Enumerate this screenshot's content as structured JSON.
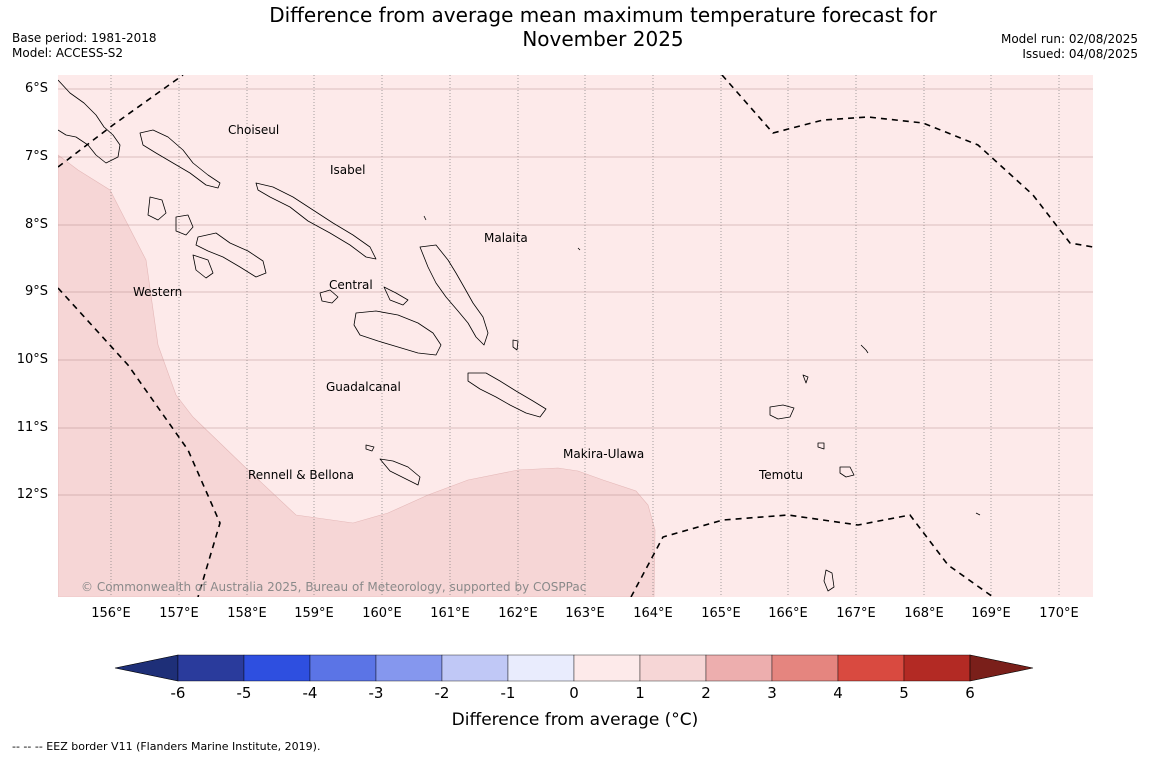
{
  "title": "Difference from average mean maximum temperature forecast for\nNovember 2025",
  "base_period": "Base period: 1981-2018",
  "model": "Model: ACCESS-S2",
  "model_run": "Model run: 02/08/2025",
  "issued": "Issued: 04/08/2025",
  "latitude_labels": [
    "6°S",
    "7°S",
    "8°S",
    "9°S",
    "10°S",
    "11°S",
    "12°S"
  ],
  "longitude_labels": [
    "156°E",
    "157°E",
    "158°E",
    "159°E",
    "160°E",
    "161°E",
    "162°E",
    "163°E",
    "164°E",
    "165°E",
    "166°E",
    "167°E",
    "168°E",
    "169°E",
    "170°E"
  ],
  "region_labels": {
    "choiseul": "Choiseul",
    "isabel": "Isabel",
    "malaita": "Malaita",
    "western": "Western",
    "central": "Central",
    "guadalcanal": "Guadalcanal",
    "makira_ulawa": "Makira-Ulawa",
    "rennell_bellona": "Rennell & Bellona",
    "temotu": "Temotu"
  },
  "copyright": "© Commonwealth of Australia 2025, Bureau of Meteorology, supported by COSPPac",
  "colorbar": {
    "ticks": [
      "-6",
      "-5",
      "-4",
      "-3",
      "-2",
      "-1",
      "0",
      "1",
      "2",
      "3",
      "4",
      "5",
      "6"
    ],
    "colors": [
      "#2a3b9c",
      "#2e4fe0",
      "#5b74e6",
      "#8597ee",
      "#c0c8f6",
      "#e9ecfd",
      "#fdeaea",
      "#f6d6d6",
      "#edaeae",
      "#e5857f",
      "#d94a40",
      "#b32a24"
    ],
    "under_color": "#1e2f78",
    "over_color": "#7a1f1a",
    "label": "Difference from average (°C)"
  },
  "map_fill": {
    "class_0_to_1": "#fdeaea",
    "class_1_to_2": "#f6d6d6"
  },
  "footnote": "-- -- -- EEZ border V11 (Flanders Marine Institute, 2019)."
}
